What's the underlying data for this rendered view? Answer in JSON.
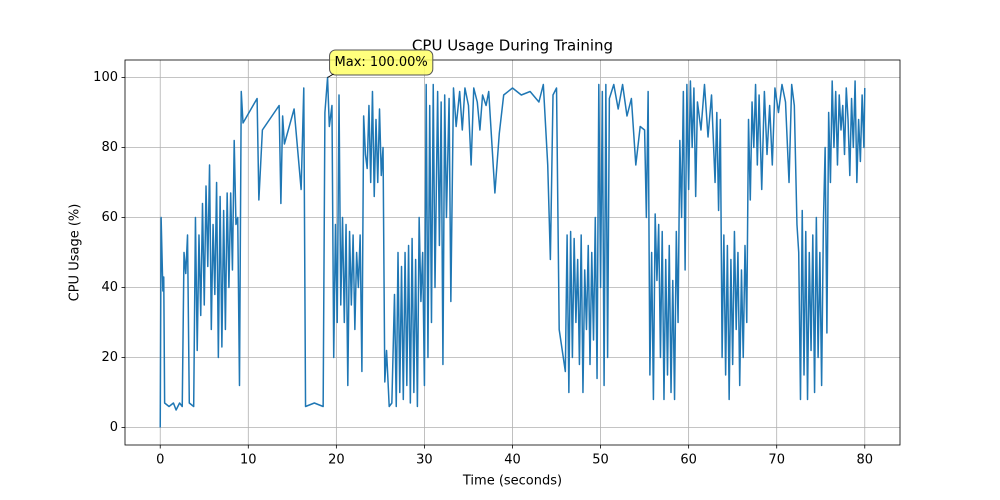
{
  "chart_data": {
    "type": "line",
    "title": "CPU Usage During Training",
    "xlabel": "Time (seconds)",
    "ylabel": "CPU Usage (%)",
    "color": "#1f77b4",
    "grid": true,
    "xlim": [
      -4,
      84
    ],
    "ylim": [
      -5,
      105
    ],
    "xticks": [
      0,
      10,
      20,
      30,
      40,
      50,
      60,
      70,
      80
    ],
    "yticks": [
      0,
      20,
      40,
      60,
      80,
      100
    ],
    "annotation": {
      "text": "Max: 100.00%",
      "x": 19,
      "y": 100
    },
    "x": [
      0,
      0.1,
      0.3,
      0.4,
      0.5,
      1,
      1.5,
      1.8,
      2.2,
      2.5,
      2.7,
      2.9,
      3.1,
      3.3,
      3.8,
      4.0,
      4.2,
      4.4,
      4.6,
      4.8,
      5.0,
      5.2,
      5.4,
      5.6,
      5.8,
      6.0,
      6.2,
      6.4,
      6.6,
      6.8,
      7.0,
      7.2,
      7.4,
      7.6,
      7.8,
      8.0,
      8.2,
      8.4,
      8.6,
      8.8,
      9.0,
      9.2,
      9.4,
      11,
      11.2,
      11.4,
      11.6,
      13.5,
      13.7,
      13.9,
      14.1,
      15.2,
      16.0,
      16.3,
      16.5,
      17.5,
      18.5,
      18.7,
      19.0,
      19.2,
      19.5,
      19.7,
      19.9,
      20.1,
      20.3,
      20.5,
      20.7,
      20.9,
      21.1,
      21.3,
      21.5,
      21.7,
      21.9,
      22.1,
      22.3,
      22.5,
      22.7,
      22.9,
      23.1,
      23.3,
      23.5,
      23.7,
      23.9,
      24.1,
      24.3,
      24.5,
      24.7,
      24.9,
      25.1,
      25.3,
      25.5,
      25.7,
      26,
      26.3,
      26.6,
      26.8,
      27.0,
      27.2,
      27.4,
      27.6,
      27.8,
      28.0,
      28.2,
      28.4,
      28.6,
      28.8,
      29.0,
      29.2,
      29.4,
      29.6,
      29.8,
      30.0,
      30.2,
      30.4,
      30.6,
      30.8,
      31.0,
      31.2,
      31.5,
      31.7,
      31.9,
      32.1,
      32.3,
      32.5,
      32.8,
      33,
      33.3,
      33.6,
      34,
      34.3,
      34.6,
      35,
      35.3,
      35.6,
      36,
      36.3,
      36.6,
      37,
      37.3,
      38,
      38.5,
      39,
      40,
      41,
      42,
      43,
      43.5,
      44,
      44.3,
      44.6,
      45,
      45.3,
      46,
      46.2,
      46.4,
      46.6,
      46.8,
      47,
      47.2,
      47.4,
      47.6,
      47.8,
      48,
      48.2,
      48.4,
      48.6,
      48.8,
      49,
      49.2,
      49.4,
      49.6,
      49.8,
      50,
      50.2,
      50.4,
      50.6,
      50.8,
      51,
      51.5,
      52,
      52.5,
      53,
      53.5,
      54,
      54.5,
      55,
      55.2,
      55.4,
      55.6,
      55.8,
      56,
      56.2,
      56.4,
      56.6,
      56.8,
      57,
      57.2,
      57.4,
      57.6,
      57.8,
      58,
      58.2,
      58.4,
      58.6,
      58.8,
      59,
      59.2,
      59.4,
      59.6,
      59.8,
      60,
      60.2,
      60.4,
      60.6,
      60.8,
      61,
      61.4,
      61.8,
      62.2,
      62.6,
      63,
      63.2,
      63.4,
      63.6,
      63.8,
      64,
      64.2,
      64.4,
      64.6,
      64.8,
      65,
      65.2,
      65.4,
      65.6,
      65.8,
      66,
      66.2,
      66.4,
      66.6,
      66.8,
      67,
      67.2,
      67.4,
      67.6,
      67.8,
      68,
      68.3,
      68.6,
      68.9,
      69.2,
      69.5,
      69.8,
      70.2,
      70.6,
      71,
      71.4,
      71.7,
      72,
      72.3,
      72.5,
      72.7,
      72.9,
      73.1,
      73.3,
      73.5,
      73.7,
      73.9,
      74.1,
      74.3,
      74.5,
      74.7,
      74.9,
      75.1,
      75.3,
      75.5,
      75.7,
      75.9,
      76.1,
      76.3,
      76.5,
      76.7,
      76.9,
      77.1,
      77.3,
      77.5,
      77.7,
      77.9,
      78.1,
      78.3,
      78.5,
      78.7,
      78.9,
      79.1,
      79.3,
      79.5,
      79.7,
      79.9,
      80
    ],
    "values": [
      0,
      60,
      39,
      43,
      7,
      6,
      7,
      5,
      7,
      6,
      50,
      44,
      55,
      7,
      6,
      60,
      22,
      55,
      32,
      64,
      35,
      69,
      46,
      75,
      28,
      58,
      38,
      70,
      20,
      66,
      23,
      62,
      28,
      67,
      40,
      67,
      45,
      82,
      58,
      60,
      12,
      96,
      87,
      94,
      65,
      75,
      85,
      92,
      64,
      89,
      81,
      91,
      68,
      97,
      6,
      7,
      6,
      90,
      100,
      86,
      92,
      20,
      58,
      30,
      95,
      35,
      60,
      30,
      58,
      12,
      56,
      35,
      55,
      28,
      50,
      40,
      55,
      16,
      89,
      78,
      74,
      92,
      70,
      96,
      66,
      88,
      70,
      91,
      72,
      80,
      13,
      22,
      6,
      7,
      38,
      6,
      50,
      10,
      46,
      8,
      50,
      12,
      52,
      7,
      54,
      10,
      48,
      6,
      60,
      36,
      50,
      12,
      98,
      20,
      92,
      30,
      98,
      40,
      96,
      52,
      93,
      18,
      95,
      60,
      94,
      36,
      97,
      86,
      96,
      85,
      97,
      92,
      75,
      97,
      93,
      85,
      95,
      92,
      96,
      67,
      84,
      95,
      97,
      95,
      96,
      93,
      98,
      75,
      48,
      95,
      97,
      28,
      16,
      55,
      10,
      56,
      20,
      54,
      30,
      48,
      18,
      55,
      10,
      45,
      28,
      52,
      18,
      50,
      25,
      60,
      14,
      98,
      40,
      96,
      12,
      98,
      20,
      94,
      98,
      91,
      98,
      89,
      94,
      75,
      86,
      85,
      60,
      96,
      15,
      50,
      8,
      61,
      42,
      58,
      20,
      56,
      8,
      48,
      15,
      52,
      10,
      42,
      8,
      56,
      30,
      82,
      60,
      96,
      45,
      98,
      68,
      99,
      80,
      97,
      66,
      93,
      85,
      98,
      83,
      95,
      70,
      90,
      62,
      88,
      20,
      55,
      15,
      52,
      8,
      48,
      18,
      56,
      28,
      50,
      12,
      45,
      20,
      52,
      30,
      88,
      65,
      93,
      80,
      98,
      75,
      95,
      68,
      96,
      78,
      92,
      75,
      97,
      90,
      98,
      93,
      70,
      98,
      92,
      58,
      50,
      8,
      62,
      15,
      56,
      8,
      50,
      22,
      55,
      10,
      60,
      20,
      50,
      12,
      58,
      80,
      27,
      90,
      70,
      99,
      80,
      96,
      75,
      95,
      85,
      92,
      78,
      97,
      88,
      72,
      94,
      80,
      99,
      70,
      88,
      76,
      95,
      80,
      97
    ]
  }
}
